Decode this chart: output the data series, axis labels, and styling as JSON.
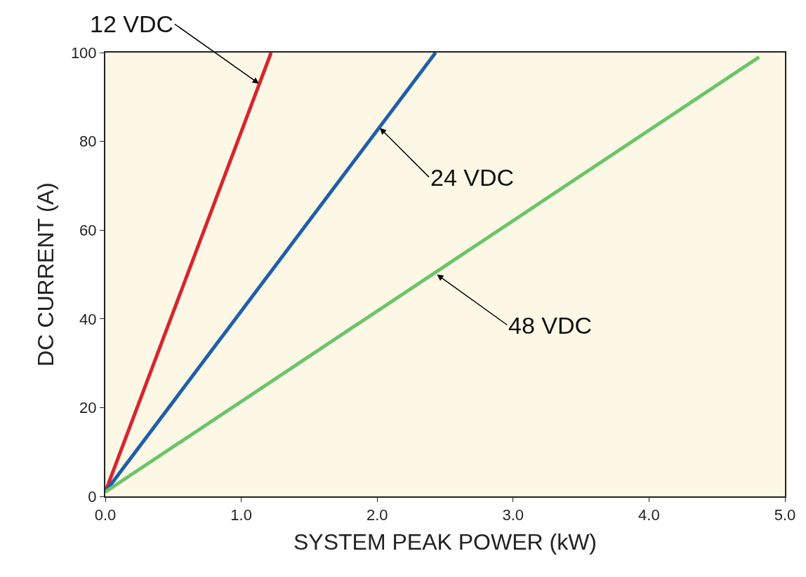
{
  "chart_data": {
    "type": "line",
    "xlabel": "SYSTEM PEAK POWER (kW)",
    "ylabel": "DC CURRENT (A)",
    "series": [
      {
        "color": "#d9252c",
        "x": [
          0.0,
          1.22
        ],
        "values": [
          1,
          100
        ]
      },
      {
        "color": "#1f5faa",
        "x": [
          0.0,
          2.43
        ],
        "values": [
          1,
          100
        ]
      },
      {
        "color": "#6cc46a",
        "x": [
          0.0,
          4.81
        ],
        "values": [
          1,
          99
        ]
      }
    ],
    "xlim": [
      0,
      5
    ],
    "xticks": [
      {
        "value": 0,
        "label": "0.0"
      },
      {
        "value": 1,
        "label": "1.0"
      },
      {
        "value": 2,
        "label": "2.0"
      },
      {
        "value": 3,
        "label": "3.0"
      },
      {
        "value": 4,
        "label": "4.0"
      },
      {
        "value": 5,
        "label": "5.0"
      }
    ],
    "ylim": [
      0,
      100
    ],
    "yticks": [
      0,
      20,
      40,
      60,
      80,
      100
    ],
    "annotations": [
      {
        "text": "12 VDC",
        "x": 1.13,
        "y": 93
      },
      {
        "text": "24 VDC",
        "x": 2.02,
        "y": 83
      },
      {
        "text": "48 VDC",
        "x": 2.44,
        "y": 50
      }
    ],
    "grid": false,
    "marker": "none",
    "line_style": "solid"
  }
}
